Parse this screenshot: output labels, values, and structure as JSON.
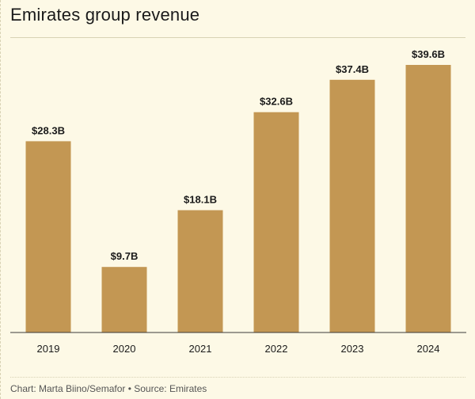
{
  "header": {
    "title": "Emirates group revenue"
  },
  "footer": {
    "credit": "Chart: Marta Biino/Semafor • Source: Emirates"
  },
  "colors": {
    "background": "#fdf9e6",
    "bar": "#c39753",
    "axis": "#3a3a3a",
    "text": "#1a1a1a"
  },
  "chart_data": {
    "type": "bar",
    "title": "Emirates group revenue",
    "xlabel": "",
    "ylabel": "",
    "categories": [
      "2019",
      "2020",
      "2021",
      "2022",
      "2023",
      "2024"
    ],
    "values": [
      28.3,
      9.7,
      18.1,
      32.6,
      37.4,
      39.6
    ],
    "data_labels": [
      "$28.3B",
      "$9.7B",
      "$18.1B",
      "$32.6B",
      "$37.4B",
      "$39.6B"
    ],
    "unit": "billion USD",
    "ylim": [
      0,
      39.6
    ],
    "grid": false,
    "legend": "none"
  }
}
